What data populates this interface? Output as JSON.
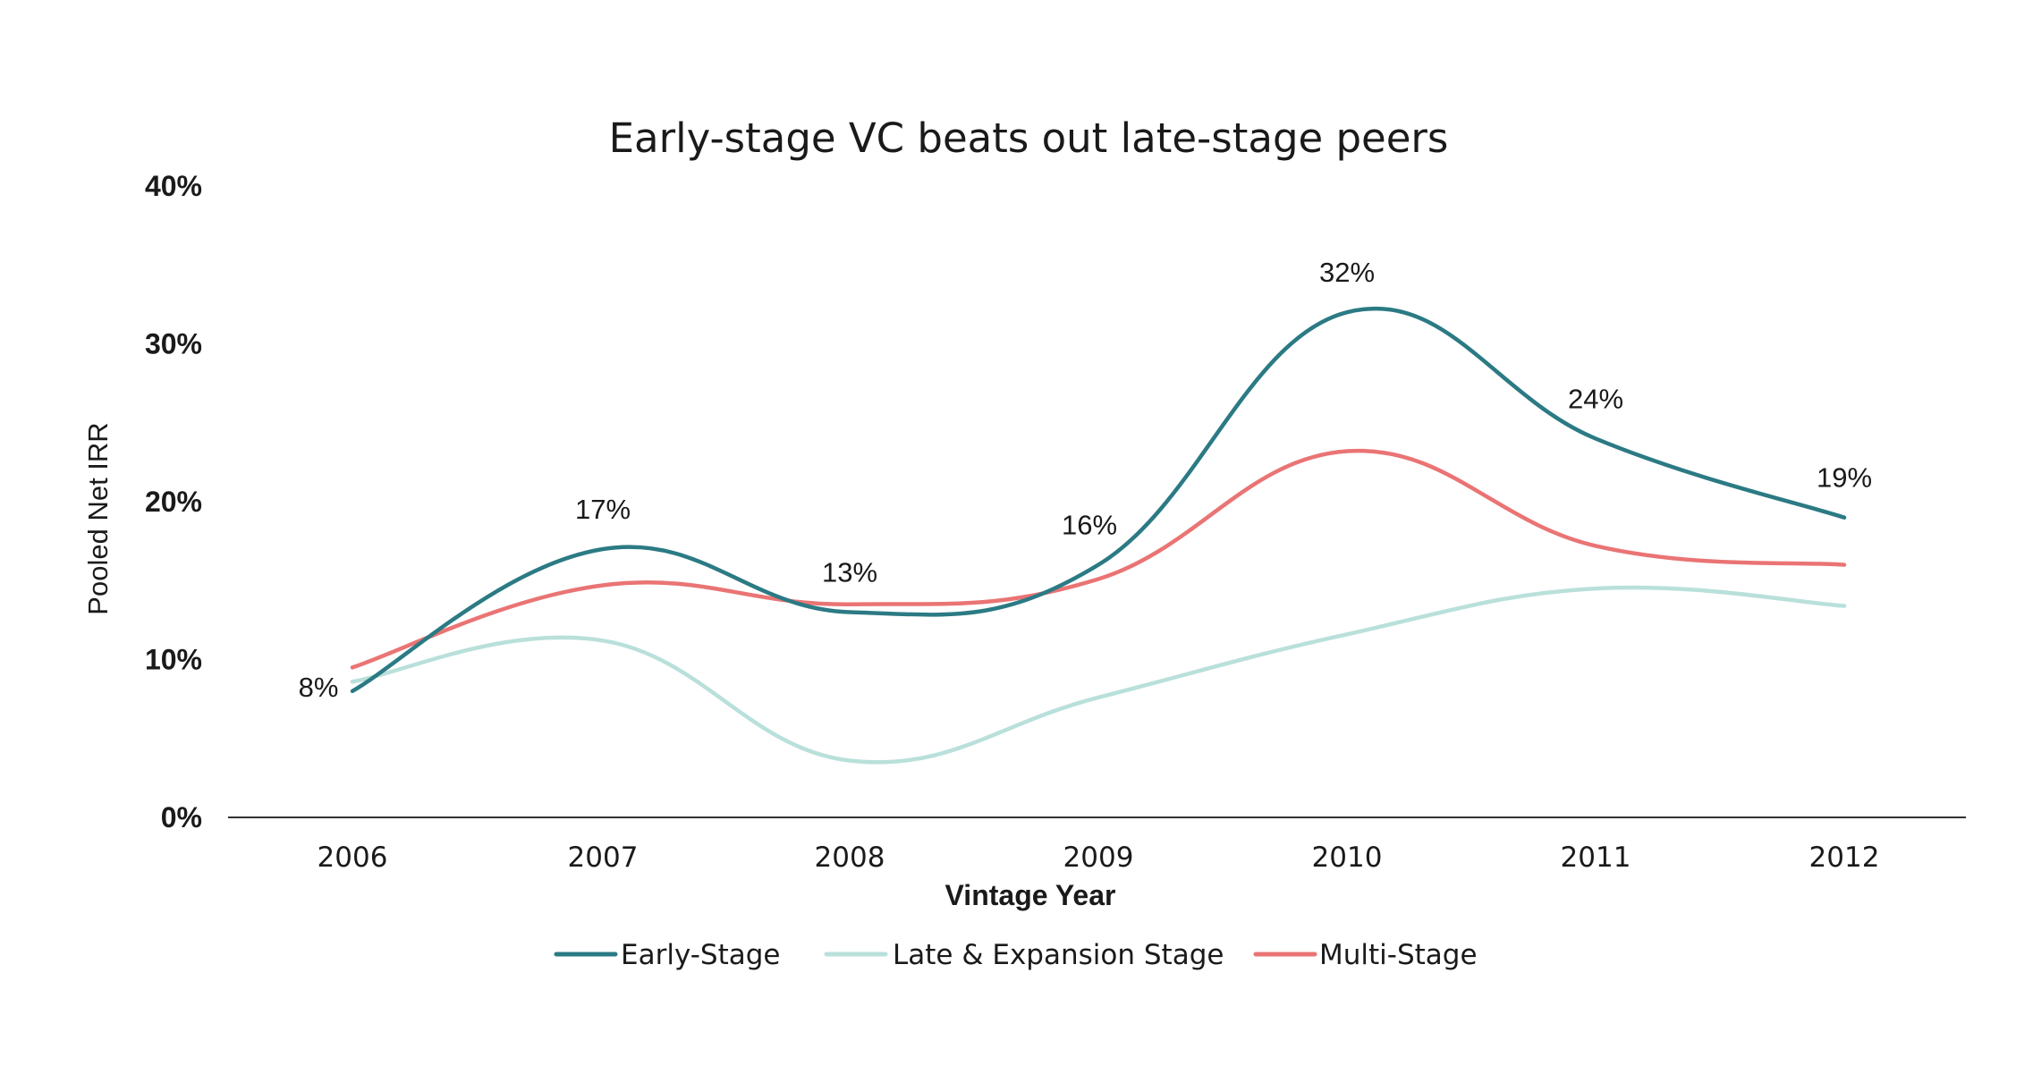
{
  "chart_data": {
    "type": "line",
    "title": "Early-stage VC beats out late-stage peers",
    "xlabel": "Vintage Year",
    "ylabel": "Pooled Net IRR",
    "categories": [
      "2006",
      "2007",
      "2008",
      "2009",
      "2010",
      "2011",
      "2012"
    ],
    "ylim": [
      0,
      40
    ],
    "yticks": [
      0,
      10,
      20,
      30,
      40
    ],
    "ytick_labels": [
      "0%",
      "10%",
      "20%",
      "30%",
      "40%"
    ],
    "grid": false,
    "legend_position": "bottom",
    "series": [
      {
        "name": "Early-Stage",
        "color": "#2b7a84",
        "values": [
          8,
          17,
          13,
          16,
          32,
          24,
          19
        ],
        "data_labels": [
          "8%",
          "17%",
          "13%",
          "16%",
          "32%",
          "24%",
          "19%"
        ]
      },
      {
        "name": "Late & Expansion Stage",
        "color": "#b9e0da",
        "values": [
          8.6,
          11.2,
          3.6,
          7.6,
          11.6,
          14.5,
          13.4
        ]
      },
      {
        "name": "Multi-Stage",
        "color": "#ea7474",
        "values": [
          9.5,
          14.7,
          13.5,
          15.1,
          23.2,
          17.2,
          16.0
        ]
      }
    ]
  }
}
